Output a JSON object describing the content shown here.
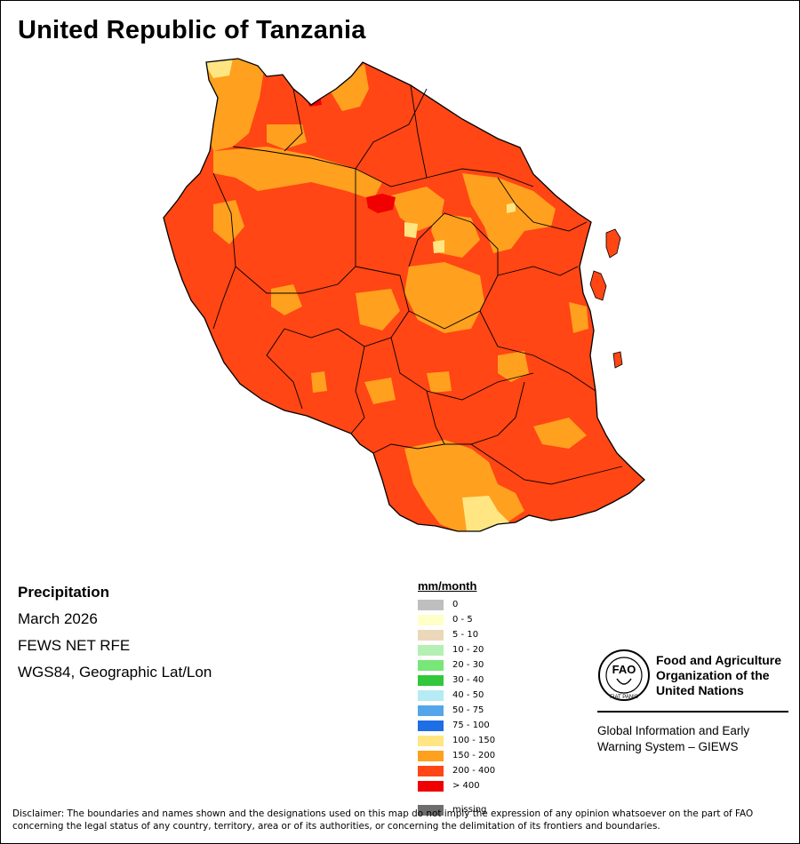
{
  "title": "United Republic of Tanzania",
  "info": {
    "variable": "Precipitation",
    "period": "March 2026",
    "source": "FEWS NET RFE",
    "projection": "WGS84, Geographic Lat/Lon"
  },
  "legend": {
    "title": "mm/month",
    "items": [
      {
        "label": "0",
        "color": "#bfbfbf"
      },
      {
        "label": "0 - 5",
        "color": "#ffffc8"
      },
      {
        "label": "5 - 10",
        "color": "#ebd7b9"
      },
      {
        "label": "10 - 20",
        "color": "#b4f0b4"
      },
      {
        "label": "20 - 30",
        "color": "#78e678"
      },
      {
        "label": "30 - 40",
        "color": "#32c83c"
      },
      {
        "label": "40 - 50",
        "color": "#b4ebf5"
      },
      {
        "label": "50 - 75",
        "color": "#55a5eb"
      },
      {
        "label": "75 - 100",
        "color": "#1e6ee6"
      },
      {
        "label": "100 - 150",
        "color": "#ffe682"
      },
      {
        "label": "150 - 200",
        "color": "#ffa01e"
      },
      {
        "label": "200 - 400",
        "color": "#ff4614"
      },
      {
        "label": "> 400",
        "color": "#f00000"
      },
      {
        "label": "missing",
        "color": "#6e6e6e"
      }
    ]
  },
  "colors": {
    "c200_400": "#ff4614",
    "c150_200": "#ffa01e",
    "c100_150": "#ffe682",
    "c_gt400": "#f00000",
    "border": "#000000"
  },
  "logo": {
    "letters": "FAO",
    "ring_text": "FIAT PANIS",
    "org_line1": "Food and Agriculture",
    "org_line2": "Organization of the",
    "org_line3": "United Nations"
  },
  "giews": {
    "line1": "Global Information and Early",
    "line2": "Warning System – GIEWS"
  },
  "disclaimer": "Disclaimer: The boundaries and names shown and the designations used on this map do not imply the expression of any opinion whatsoever on the part of FAO concerning the legal status of any country, territory, area or of its authorities, or concerning the delimitation of its frontiers and boundaries."
}
